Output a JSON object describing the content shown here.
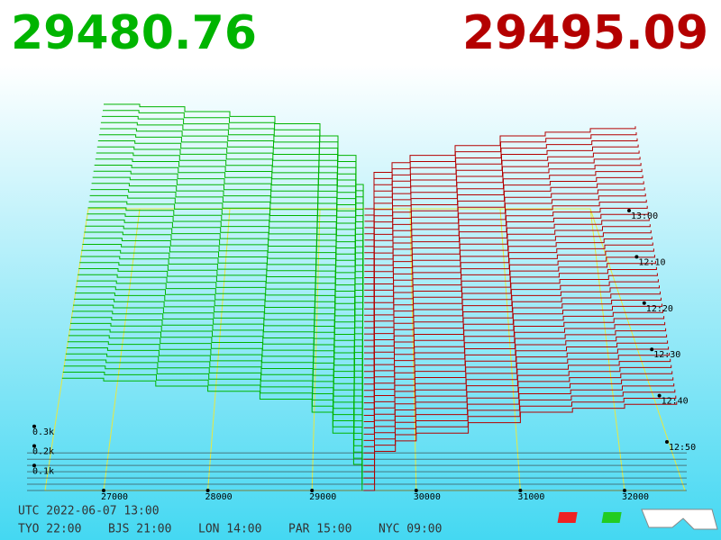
{
  "header": {
    "bid": "29480.76",
    "ask": "29495.09"
  },
  "price_ticks": [
    27000,
    28000,
    29000,
    30000,
    31000,
    32000
  ],
  "volume_ticks": [
    {
      "value": 300,
      "label": "0.3k"
    },
    {
      "value": 200,
      "label": "0.2k"
    },
    {
      "value": 100,
      "label": "0.1k"
    }
  ],
  "time_labels": [
    "13:00",
    "12:10",
    "12:20",
    "12:30",
    "12:40",
    "12:50"
  ],
  "depth": {
    "bids": {
      "prices": [
        26600,
        27000,
        27500,
        28000,
        28500,
        29000,
        29200,
        29400,
        29480.76
      ],
      "volumes": [
        430,
        420,
        400,
        380,
        350,
        300,
        220,
        100,
        0
      ]
    },
    "asks": {
      "prices": [
        29495.09,
        29600,
        29800,
        30000,
        30500,
        31000,
        31500,
        32000,
        32500
      ],
      "volumes": [
        0,
        150,
        190,
        220,
        260,
        300,
        315,
        330,
        340
      ]
    }
  },
  "footer": {
    "utc": "UTC 2022-06-07 13:00",
    "zones": [
      "TYO 22:00",
      "BJS 21:00",
      "LON 14:00",
      "PAR 15:00",
      "NYC 09:00"
    ]
  }
}
